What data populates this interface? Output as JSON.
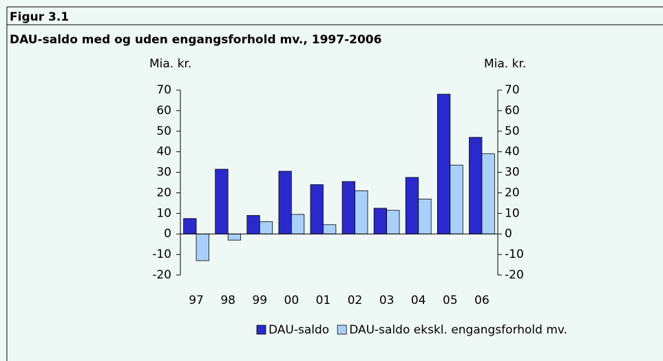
{
  "figure_label": "Figur 3.1",
  "chart_data": {
    "type": "bar",
    "title": "DAU-saldo med og uden engangsforhold mv., 1997-2006",
    "ylabel": "Mia. kr.",
    "y2label": "Mia. kr.",
    "categories": [
      "97",
      "98",
      "99",
      "00",
      "01",
      "02",
      "03",
      "04",
      "05",
      "06"
    ],
    "series": [
      {
        "name": "DAU-saldo",
        "color": "#2a2acc",
        "values": [
          7.5,
          31.5,
          9,
          30.5,
          24,
          25.5,
          12.5,
          27.5,
          68,
          47
        ]
      },
      {
        "name": "DAU-saldo ekskl. engangsforhold mv.",
        "color": "#a8d0f8",
        "values": [
          -13,
          -3,
          6,
          9.5,
          4.5,
          21,
          11.5,
          17,
          33.5,
          39
        ]
      }
    ],
    "ylim": [
      -20,
      70
    ],
    "yticks": [
      -20,
      -10,
      0,
      10,
      20,
      30,
      40,
      50,
      60,
      70
    ],
    "y2lim": [
      -20,
      70
    ],
    "y2ticks": [
      -20,
      -10,
      0,
      10,
      20,
      30,
      40,
      50,
      60,
      70
    ],
    "legend": "bottom"
  }
}
